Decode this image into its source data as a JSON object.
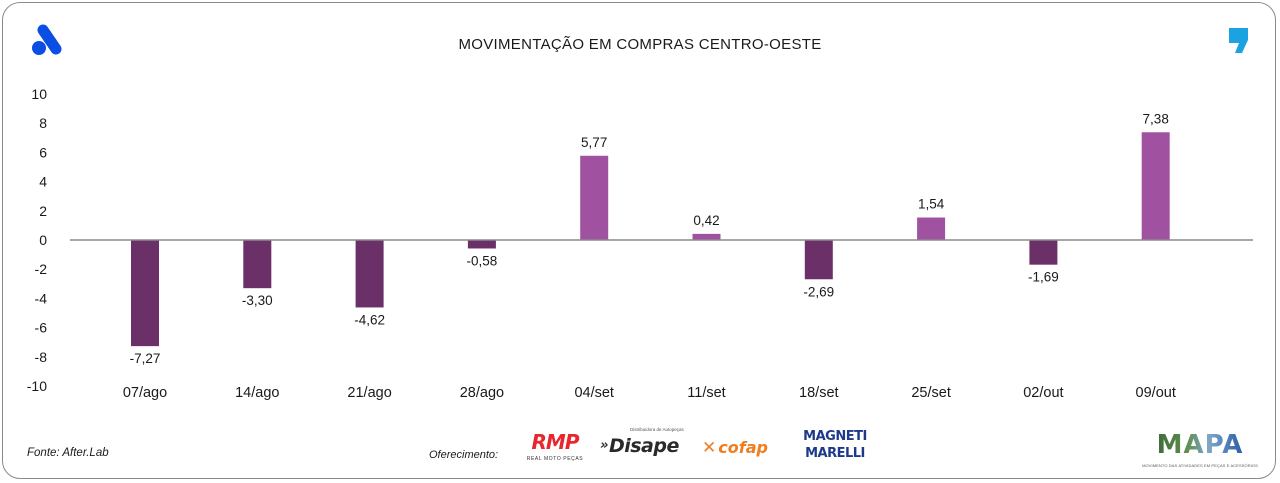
{
  "header": {
    "title": "MOVIMENTAÇÃO EM COMPRAS CENTRO-OESTE",
    "left_logo_icon": "brand-a-logo-icon",
    "right_logo_icon": "brand-comma-logo-icon",
    "left_logo_color": "#0a4ee4",
    "right_logo_color": "#1aa3e0"
  },
  "chart_data": {
    "type": "bar",
    "title": "MOVIMENTAÇÃO EM COMPRAS CENTRO-OESTE",
    "xlabel": "",
    "ylabel": "",
    "ylim": [
      -10,
      10
    ],
    "yticks": [
      10,
      8,
      6,
      4,
      2,
      0,
      -2,
      -4,
      -6,
      -8,
      -10
    ],
    "grid": false,
    "legend": "none",
    "categories": [
      "07/ago",
      "14/ago",
      "21/ago",
      "28/ago",
      "04/set",
      "11/set",
      "18/set",
      "25/set",
      "02/out",
      "09/out"
    ],
    "values": [
      -7.27,
      -3.3,
      -4.62,
      -0.58,
      5.77,
      0.42,
      -2.69,
      1.54,
      -1.69,
      7.38
    ],
    "labels": [
      "-7,27",
      "-3,30",
      "-4,62",
      "-0,58",
      "5,77",
      "0,42",
      "-2,69",
      "1,54",
      "-1,69",
      "7,38"
    ],
    "colors": {
      "negative": "#6b3068",
      "positive": "#a052a0",
      "zero_line": "#8a8a8a"
    }
  },
  "footer": {
    "source": "Fonte: After.Lab",
    "sponsor_label": "Oferecimento:",
    "sponsors": [
      {
        "name": "RMP",
        "tagline": "REAL MOTO PEÇAS"
      },
      {
        "name": "Disape",
        "tagline": "Distribuidora de Autopeças",
        "prefix": "»"
      },
      {
        "name": "cofap",
        "prefix": "✕"
      },
      {
        "name": "MAGNETI",
        "line2": "MARELLI"
      }
    ],
    "mapa": {
      "name": "MAPA",
      "tagline": "MOVIMENTO DAS ATIVIDADES EM PEÇAS E ACESSÓRIOS"
    }
  }
}
